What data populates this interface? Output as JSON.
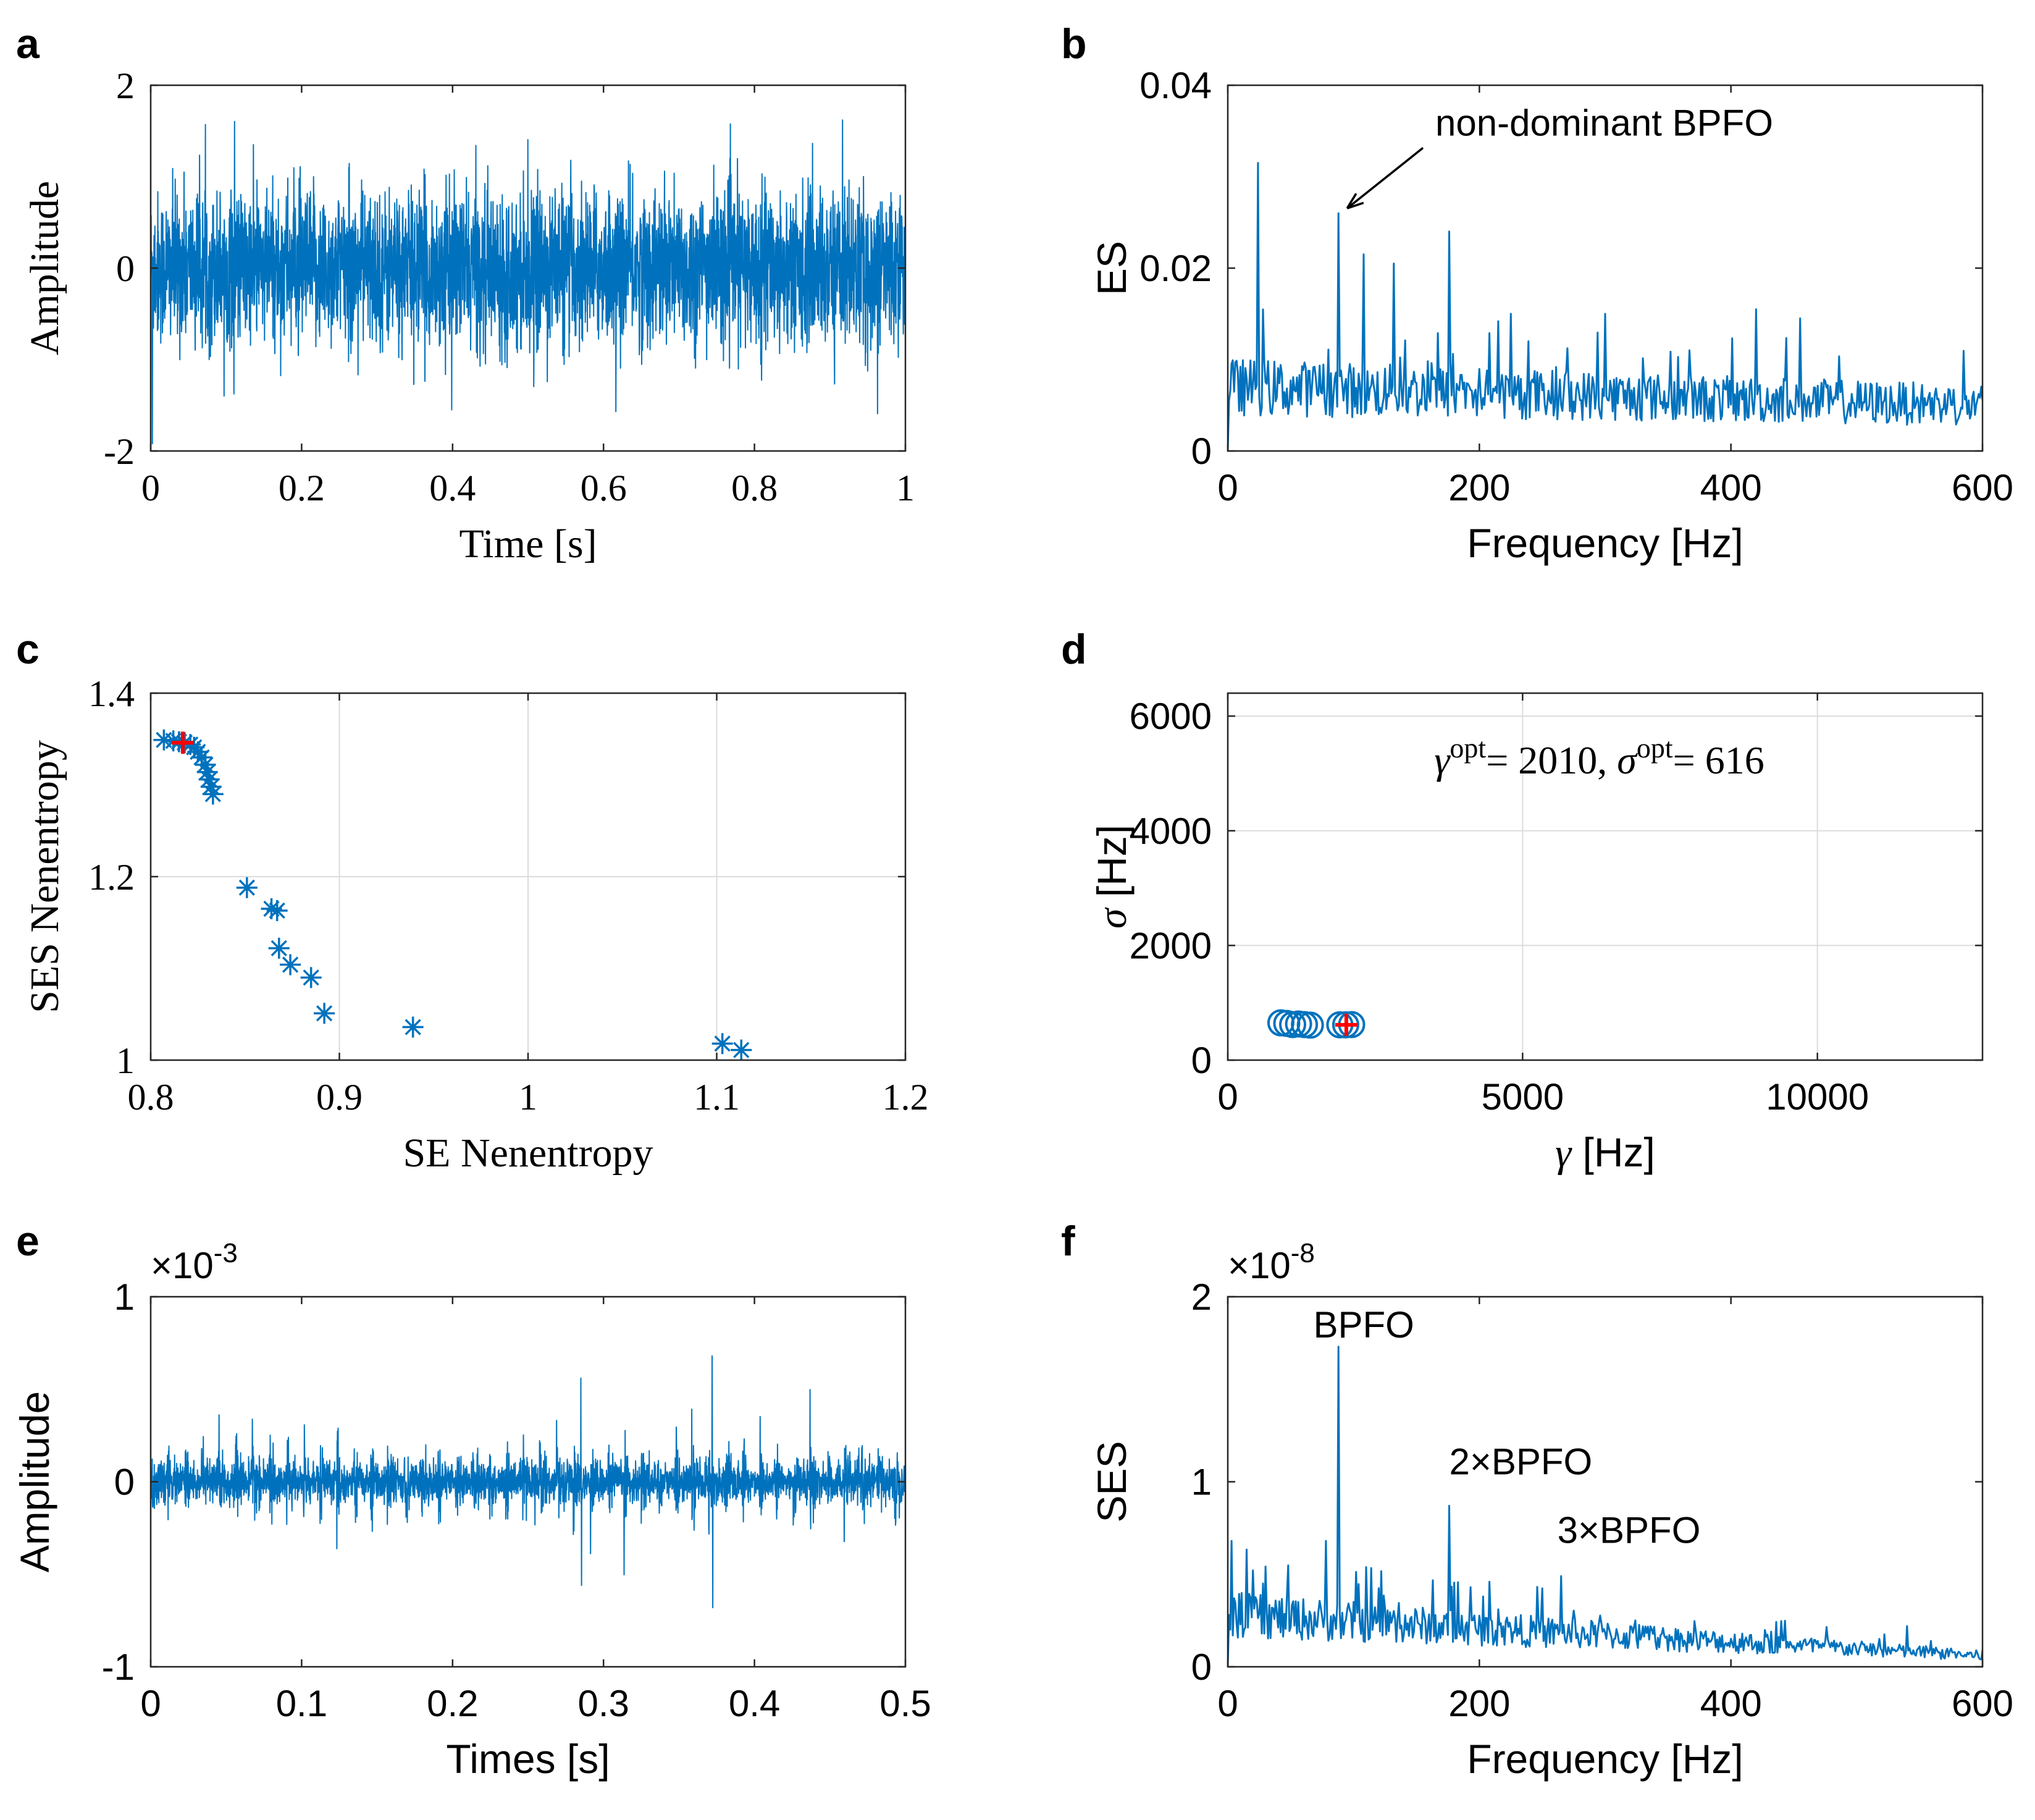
{
  "colors": {
    "line": "#0072BD",
    "axis": "#262626",
    "grid": "#dcdcdc",
    "marker_opt": "#ff0000",
    "text": "#000000"
  },
  "chart_data": [
    {
      "id": "a",
      "panel_label": "a",
      "type": "line",
      "xlabel": "Time [s]",
      "ylabel": "Amplitude",
      "xlim": [
        0,
        1
      ],
      "ylim": [
        -2,
        2
      ],
      "xticks": [
        0,
        0.2,
        0.4,
        0.6,
        0.8,
        1
      ],
      "xticklabels": [
        "0",
        "0.2",
        "0.4",
        "0.6",
        "0.8",
        "1"
      ],
      "yticks": [
        -2,
        0,
        2
      ],
      "yticklabels": [
        "-2",
        "0",
        "2"
      ],
      "grid": false,
      "series": [
        {
          "kind": "dense_noise",
          "x_range": [
            0,
            1
          ],
          "typical_amplitude": 0.75,
          "peak_max": 1.62,
          "peak_min": -1.92
        }
      ]
    },
    {
      "id": "b",
      "panel_label": "b",
      "type": "line",
      "xlabel": "Frequency [Hz]",
      "ylabel": "ES",
      "xlim": [
        0,
        600
      ],
      "ylim": [
        0,
        0.04
      ],
      "xticks": [
        0,
        200,
        400,
        600
      ],
      "xticklabels": [
        "0",
        "200",
        "400",
        "600"
      ],
      "yticks": [
        0,
        0.02,
        0.04
      ],
      "yticklabels": [
        "0",
        "0.02",
        "0.04"
      ],
      "grid": false,
      "series": [
        {
          "kind": "spectrum",
          "baseline": 0.007,
          "decay_to": 0.005,
          "peaks": [
            [
              24,
              0.0315
            ],
            [
              88,
              0.026
            ],
            [
              108,
              0.0215
            ],
            [
              132,
              0.0205
            ],
            [
              176,
              0.024
            ],
            [
              225,
              0.015
            ],
            [
              300,
              0.015
            ],
            [
              420,
              0.0155
            ],
            [
              455,
              0.0145
            ]
          ]
        }
      ],
      "annotations": [
        {
          "text": "non-dominant BPFO",
          "target": [
            88,
            0.026
          ],
          "text_at": [
            165,
            0.0345
          ],
          "arrow": true
        }
      ]
    },
    {
      "id": "c",
      "panel_label": "c",
      "type": "scatter",
      "xlabel": "SE Nenentropy",
      "ylabel": "SES Nenentropy",
      "xlim": [
        0.8,
        1.2
      ],
      "ylim": [
        1.0,
        1.4
      ],
      "xticks": [
        0.8,
        0.9,
        1.0,
        1.1,
        1.2
      ],
      "xticklabels": [
        "0.8",
        "0.9",
        "1",
        "1.1",
        "1.2"
      ],
      "yticks": [
        1.0,
        1.2,
        1.4
      ],
      "yticklabels": [
        "1",
        "1.2",
        "1.4"
      ],
      "grid": true,
      "marker": "asterisk",
      "points": [
        [
          0.807,
          1.349
        ],
        [
          0.812,
          1.348
        ],
        [
          0.815,
          1.347
        ],
        [
          0.818,
          1.346
        ],
        [
          0.821,
          1.344
        ],
        [
          0.823,
          1.341
        ],
        [
          0.825,
          1.336
        ],
        [
          0.827,
          1.33
        ],
        [
          0.829,
          1.322
        ],
        [
          0.83,
          1.314
        ],
        [
          0.831,
          1.306
        ],
        [
          0.832,
          1.298
        ],
        [
          0.833,
          1.29
        ],
        [
          0.851,
          1.188
        ],
        [
          0.864,
          1.165
        ],
        [
          0.867,
          1.163
        ],
        [
          0.868,
          1.122
        ],
        [
          0.874,
          1.104
        ],
        [
          0.885,
          1.09
        ],
        [
          0.892,
          1.051
        ],
        [
          0.939,
          1.036
        ],
        [
          1.103,
          1.018
        ],
        [
          1.113,
          1.011
        ]
      ],
      "optimal_point": [
        0.817,
        1.346
      ]
    },
    {
      "id": "d",
      "panel_label": "d",
      "type": "scatter",
      "xlabel": "γ [Hz]",
      "ylabel": "σ [Hz]",
      "xlim": [
        0,
        12800
      ],
      "ylim": [
        0,
        6400
      ],
      "xticks": [
        0,
        5000,
        10000
      ],
      "xticklabels": [
        "0",
        "5000",
        "10000"
      ],
      "yticks": [
        0,
        2000,
        4000,
        6000
      ],
      "yticklabels": [
        "0",
        "2000",
        "4000",
        "6000"
      ],
      "grid": true,
      "marker": "circle",
      "points": [
        [
          900,
          650
        ],
        [
          1000,
          640
        ],
        [
          1100,
          620
        ],
        [
          1200,
          630
        ],
        [
          1300,
          620
        ],
        [
          1400,
          610
        ],
        [
          1900,
          616
        ],
        [
          2000,
          616
        ],
        [
          2100,
          620
        ]
      ],
      "optimal_point": [
        2010,
        616
      ],
      "annotation": {
        "text": "γopt= 2010, σopt= 616",
        "at": [
          6300,
          5000
        ]
      }
    },
    {
      "id": "e",
      "panel_label": "e",
      "type": "line",
      "xlabel": "Times [s]",
      "ylabel": "Amplitude",
      "xlim": [
        0,
        0.5
      ],
      "ylim": [
        -1,
        1
      ],
      "y_multiplier": "×10-3",
      "xticks": [
        0,
        0.1,
        0.2,
        0.3,
        0.4,
        0.5
      ],
      "xticklabels": [
        "0",
        "0.1",
        "0.2",
        "0.3",
        "0.4",
        "0.5"
      ],
      "yticks": [
        -1,
        0,
        1
      ],
      "yticklabels": [
        "-1",
        "0",
        "1"
      ],
      "grid": false,
      "series": [
        {
          "kind": "impulsive_noise",
          "x_range": [
            0,
            0.5
          ],
          "impulse_period": 0.0112,
          "typical_amplitude": 0.32,
          "peak_max": 0.68,
          "peak_min": -0.68
        }
      ]
    },
    {
      "id": "f",
      "panel_label": "f",
      "type": "line",
      "xlabel": "Frequency [Hz]",
      "ylabel": "SES",
      "xlim": [
        0,
        600
      ],
      "ylim": [
        0,
        2
      ],
      "y_multiplier": "×10-8",
      "xticks": [
        0,
        200,
        400,
        600
      ],
      "xticklabels": [
        "0",
        "200",
        "400",
        "600"
      ],
      "yticks": [
        0,
        1,
        2
      ],
      "yticklabels": [
        "0",
        "1",
        "2"
      ],
      "grid": false,
      "series": [
        {
          "kind": "spectrum",
          "baseline": 0.28,
          "decay_to": 0.06,
          "peaks": [
            [
              3,
              0.68
            ],
            [
              28,
              0.45
            ],
            [
              78,
              0.68
            ],
            [
              88,
              1.73
            ],
            [
              176,
              0.87
            ],
            [
              265,
              0.49
            ],
            [
              432,
              0.19
            ],
            [
              540,
              0.22
            ]
          ]
        }
      ],
      "annotations": [
        {
          "text": "BPFO",
          "at": [
            68,
            1.78
          ]
        },
        {
          "text": "2×BPFO",
          "at": [
            176,
            1.04
          ]
        },
        {
          "text": "3×BPFO",
          "at": [
            262,
            0.67
          ]
        }
      ]
    }
  ]
}
